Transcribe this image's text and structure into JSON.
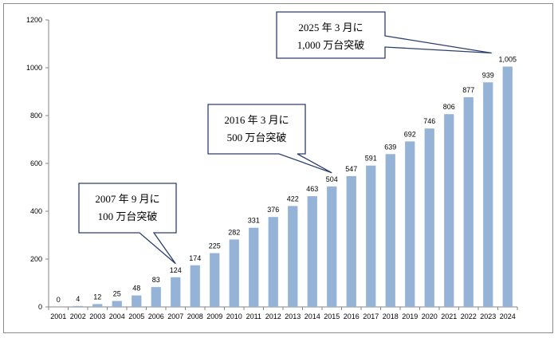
{
  "chart_data": {
    "type": "bar",
    "categories": [
      "2001",
      "2002",
      "2003",
      "2004",
      "2005",
      "2006",
      "2007",
      "2008",
      "2009",
      "2010",
      "2011",
      "2012",
      "2013",
      "2014",
      "2015",
      "2016",
      "2017",
      "2018",
      "2019",
      "2020",
      "2021",
      "2022",
      "2023",
      "2024"
    ],
    "values": [
      0,
      4,
      12,
      25,
      48,
      83,
      124,
      174,
      225,
      282,
      331,
      376,
      422,
      463,
      504,
      547,
      591,
      639,
      692,
      746,
      806,
      877,
      939,
      1005
    ],
    "value_labels": [
      "0",
      "4",
      "12",
      "25",
      "48",
      "83",
      "124",
      "174",
      "225",
      "282",
      "331",
      "376",
      "422",
      "463",
      "504",
      "547",
      "591",
      "639",
      "692",
      "746",
      "806",
      "877",
      "939",
      "1,005"
    ],
    "ylim": [
      0,
      1200
    ],
    "yticks": [
      0,
      200,
      400,
      600,
      800,
      1000,
      1200
    ],
    "bar_color": "#95b3d7",
    "grid": false,
    "legend": "none",
    "annotations": [
      {
        "lines": [
          "2007 年 9 月に",
          "100 万台突破"
        ],
        "target_category": "2007"
      },
      {
        "lines": [
          "2016 年 3 月に",
          "500 万台突破"
        ],
        "target_category": "2015"
      },
      {
        "lines": [
          "2025 年 3 月に",
          "1,000 万台突破"
        ],
        "target_category": "2024"
      }
    ]
  }
}
